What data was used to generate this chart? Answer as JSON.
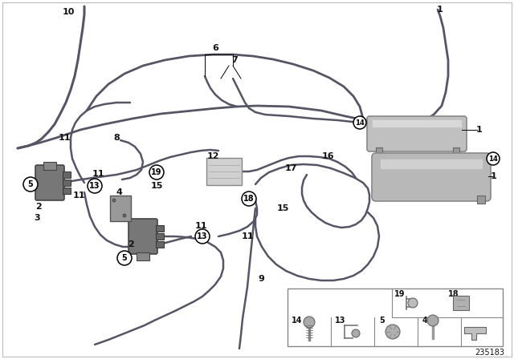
{
  "bg_color": "#ffffff",
  "border_color": "#cccccc",
  "hose_color": "#555566",
  "hose_lw": 2.0,
  "label_color": "#111111",
  "gray_light": "#c8c8c8",
  "gray_mid": "#aaaaaa",
  "gray_dark": "#777777",
  "diagram_id": "235183",
  "circled_labels": [
    "5",
    "13",
    "14",
    "18",
    "19"
  ],
  "plain_labels": [
    "1",
    "2",
    "3",
    "4",
    "6",
    "7",
    "8",
    "9",
    "10",
    "11",
    "12",
    "15",
    "16",
    "17"
  ]
}
